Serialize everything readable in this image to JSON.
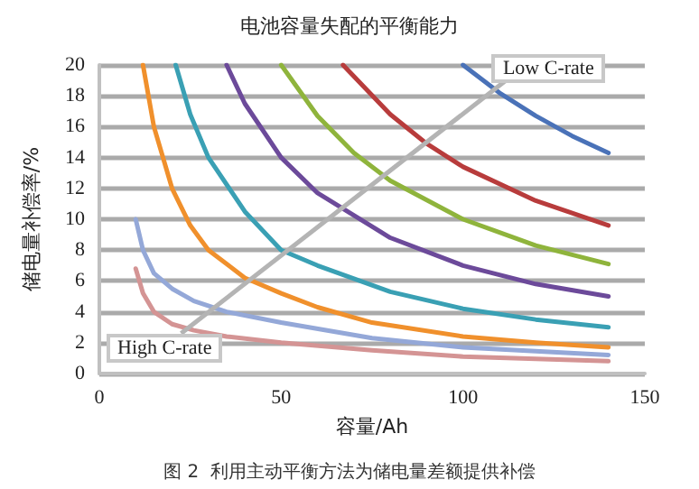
{
  "chart_data": {
    "type": "line",
    "title": "电池容量失配的平衡能力",
    "xlabel": "容量/Ah",
    "ylabel": "储电量补偿率/%",
    "annotations": [
      "Low C-rate",
      "High C-rate",
      "图 2  利用主动平衡方法为储电量差额提供补偿"
    ],
    "xlim": [
      0,
      150
    ],
    "xticks": [
      0,
      50,
      100,
      150
    ],
    "ylim": [
      0,
      20
    ],
    "yticks": [
      0,
      2,
      4,
      6,
      8,
      10,
      12,
      14,
      16,
      18,
      20
    ],
    "grid": "y",
    "marker": "none",
    "line_style": "solid",
    "series": [
      {
        "color": "#4a72b8",
        "x": [
          100,
          110,
          120,
          130,
          140
        ],
        "values": [
          20,
          18.2,
          16.7,
          15.4,
          14.3
        ]
      },
      {
        "color": "#b83c3c",
        "x": [
          67,
          80,
          90,
          100,
          120,
          140
        ],
        "values": [
          20,
          16.8,
          14.9,
          13.4,
          11.2,
          9.6
        ]
      },
      {
        "color": "#8fb43c",
        "x": [
          50,
          60,
          70,
          80,
          100,
          120,
          140
        ],
        "values": [
          20,
          16.7,
          14.3,
          12.5,
          10,
          8.3,
          7.1
        ]
      },
      {
        "color": "#6c4a9a",
        "x": [
          35,
          40,
          50,
          60,
          80,
          100,
          120,
          140
        ],
        "values": [
          20,
          17.5,
          14,
          11.7,
          8.8,
          7,
          5.8,
          5
        ]
      },
      {
        "color": "#3aa0b4",
        "x": [
          21,
          25,
          30,
          40,
          50,
          60,
          80,
          100,
          120,
          140
        ],
        "values": [
          20,
          16.8,
          14,
          10.5,
          8,
          7,
          5.3,
          4.2,
          3.5,
          3
        ]
      },
      {
        "color": "#f0902c",
        "x": [
          12,
          15,
          20,
          25,
          30,
          40,
          50,
          60,
          75,
          100,
          120,
          140
        ],
        "values": [
          20,
          16,
          12,
          9.6,
          8,
          6.2,
          5.2,
          4.3,
          3.3,
          2.4,
          2,
          1.7
        ]
      },
      {
        "color": "#94a8d8",
        "x": [
          10,
          12,
          15,
          20,
          26,
          35,
          50,
          75,
          100,
          140
        ],
        "values": [
          10,
          8,
          6.5,
          5.5,
          4.7,
          4,
          3.3,
          2.3,
          1.7,
          1.2
        ]
      },
      {
        "color": "#d49494",
        "x": [
          10,
          12,
          15,
          20,
          26,
          35,
          50,
          75,
          100,
          140
        ],
        "values": [
          6.8,
          5.2,
          4,
          3.2,
          2.8,
          2.4,
          2,
          1.5,
          1.1,
          0.8
        ]
      }
    ]
  }
}
